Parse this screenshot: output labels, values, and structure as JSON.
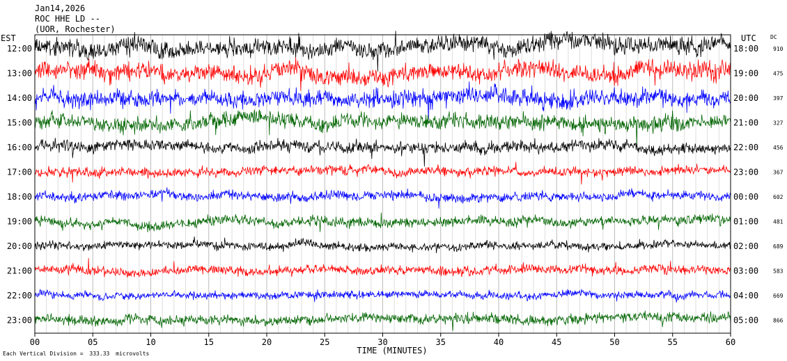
{
  "header": {
    "date": "Jan14,2026",
    "station": "ROC HHE LD --",
    "location": "(UOR, Rochester)"
  },
  "chart_data": {
    "type": "line",
    "title": "",
    "left_axis_label": "EST",
    "right_axis_label": "UTC",
    "dc_label": "DC",
    "xlabel": "TIME (MINUTES)",
    "xlim": [
      0,
      60
    ],
    "x_ticks": [
      "00",
      "05",
      "10",
      "15",
      "20",
      "25",
      "30",
      "35",
      "40",
      "45",
      "50",
      "55",
      "60"
    ],
    "grid": "vertical-per-minute",
    "trace_colors": [
      "#000000",
      "#ff0000",
      "#0000ff",
      "#006400"
    ],
    "rows": [
      {
        "est": "12:00",
        "utc": "18:00",
        "dc": "910",
        "color": "#000000",
        "amplitude": 1.0
      },
      {
        "est": "13:00",
        "utc": "19:00",
        "dc": "475",
        "color": "#ff0000",
        "amplitude": 1.0
      },
      {
        "est": "14:00",
        "utc": "20:00",
        "dc": "397",
        "color": "#0000ff",
        "amplitude": 0.95
      },
      {
        "est": "15:00",
        "utc": "21:00",
        "dc": "327",
        "color": "#006400",
        "amplitude": 0.85
      },
      {
        "est": "16:00",
        "utc": "22:00",
        "dc": "456",
        "color": "#000000",
        "amplitude": 0.65
      },
      {
        "est": "17:00",
        "utc": "23:00",
        "dc": "367",
        "color": "#ff0000",
        "amplitude": 0.5
      },
      {
        "est": "18:00",
        "utc": "00:00",
        "dc": "602",
        "color": "#0000ff",
        "amplitude": 0.5
      },
      {
        "est": "19:00",
        "utc": "01:00",
        "dc": "481",
        "color": "#006400",
        "amplitude": 0.55
      },
      {
        "est": "20:00",
        "utc": "02:00",
        "dc": "689",
        "color": "#000000",
        "amplitude": 0.45
      },
      {
        "est": "21:00",
        "utc": "03:00",
        "dc": "583",
        "color": "#ff0000",
        "amplitude": 0.5
      },
      {
        "est": "22:00",
        "utc": "04:00",
        "dc": "669",
        "color": "#0000ff",
        "amplitude": 0.4
      },
      {
        "est": "23:00",
        "utc": "05:00",
        "dc": "866",
        "color": "#006400",
        "amplitude": 0.55
      }
    ],
    "footnote_prefix": "Each Vertical Division =",
    "footnote_value": "333.33",
    "footnote_unit": "microvolts"
  }
}
